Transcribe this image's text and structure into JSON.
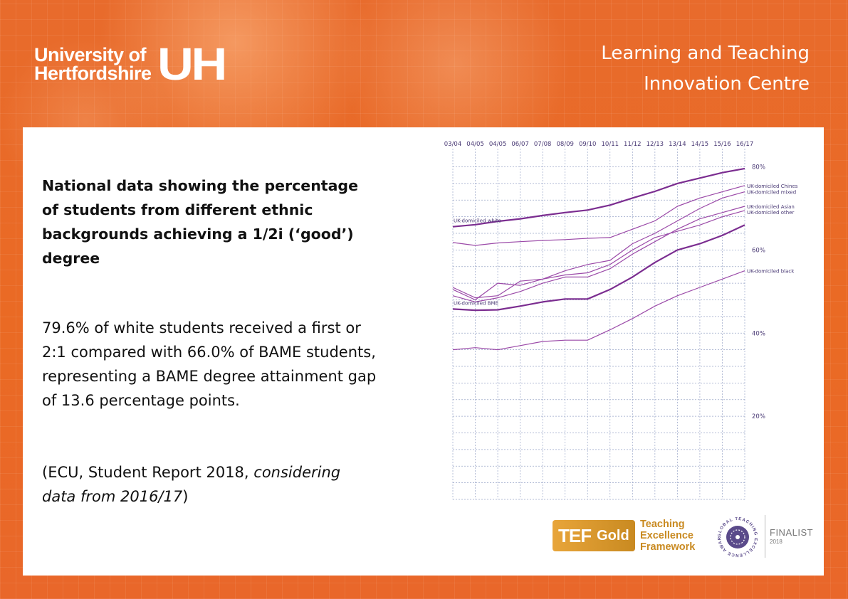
{
  "header": {
    "university_line1": "University of",
    "university_line2": "Hertfordshire",
    "university_mark": "UH",
    "centre_line1": "Learning and Teaching",
    "centre_line2": "Innovation Centre"
  },
  "text": {
    "heading": "National data showing the percentage of students from different ethnic backgrounds achieving a 1/2i (‘good’) degree",
    "paragraph": "79.6% of white students received a first or 2:1 compared with 66.0% of BAME students, representing a BAME degree attainment gap of 13.6 percentage points.",
    "citation_prefix": "(ECU, Student Report 2018, ",
    "citation_italic": "considering data from 2016/17",
    "citation_suffix": ")"
  },
  "chart_data": {
    "type": "line",
    "title": "",
    "xlabel": "",
    "ylabel": "",
    "x": [
      "03/04",
      "04/05",
      "04/05",
      "06/07",
      "07/08",
      "08/09",
      "09/10",
      "10/11",
      "11/12",
      "12/13",
      "13/14",
      "14/15",
      "15/16",
      "16/17"
    ],
    "ylim": [
      0,
      83
    ],
    "yticks": [
      20,
      40,
      60,
      80
    ],
    "ytick_labels": [
      "20%",
      "40%",
      "60%",
      "80%"
    ],
    "grid": true,
    "series": [
      {
        "name": "UK-domiciled white",
        "label_position": "left-start",
        "bold": true,
        "values": [
          65.6,
          66.1,
          66.9,
          67.5,
          68.3,
          69.0,
          69.6,
          70.8,
          72.5,
          74.1,
          76.0,
          77.3,
          78.6,
          79.6
        ]
      },
      {
        "name": "UK-domiciled Chinese",
        "label_position": "right-end",
        "bold": false,
        "values": [
          61.8,
          61.1,
          61.7,
          62.0,
          62.3,
          62.5,
          62.8,
          63.0,
          65.0,
          67.0,
          70.5,
          72.5,
          74.0,
          75.5
        ]
      },
      {
        "name": "UK-domiciled mixed",
        "label_position": "right-end",
        "bold": false,
        "values": [
          50.5,
          48.0,
          52.0,
          51.5,
          53.0,
          55.0,
          56.5,
          57.5,
          61.5,
          64.0,
          67.0,
          70.0,
          72.5,
          74.0
        ]
      },
      {
        "name": "UK-domiciled Asian",
        "label_position": "right-end",
        "bold": false,
        "values": [
          49.0,
          47.5,
          48.5,
          50.0,
          52.0,
          53.5,
          53.5,
          55.5,
          59.0,
          62.0,
          65.0,
          67.5,
          69.0,
          70.5
        ]
      },
      {
        "name": "UK-domiciled other",
        "label_position": "right-end",
        "bold": false,
        "values": [
          51.0,
          48.5,
          49.0,
          52.5,
          53.0,
          54.0,
          54.5,
          56.5,
          60.0,
          63.0,
          64.5,
          66.0,
          68.0,
          69.5
        ]
      },
      {
        "name": "UK-domiciled BME",
        "label_position": "left-start",
        "bold": true,
        "values": [
          45.8,
          45.5,
          45.6,
          46.5,
          47.5,
          48.2,
          48.2,
          50.5,
          53.5,
          57.0,
          60.0,
          61.5,
          63.5,
          66.0
        ]
      },
      {
        "name": "UK-domiciled black",
        "label_position": "right-end",
        "bold": false,
        "values": [
          36.0,
          36.5,
          36.0,
          37.0,
          38.0,
          38.3,
          38.3,
          40.8,
          43.5,
          46.5,
          49.0,
          51.0,
          53.0,
          55.0
        ]
      }
    ]
  },
  "badges": {
    "tef_abbr": "TEF",
    "tef_level": "Gold",
    "tef_line1": "Teaching",
    "tef_line2": "Excellence",
    "tef_line3": "Framework",
    "gte_ring_text": "GLOBAL TEACHING EXCELLENCE AWARD",
    "gte_status": "FINALIST",
    "gte_year": "2018"
  },
  "colors": {
    "background": "#e9672a",
    "line_dark": "#7b2d90",
    "line_light": "#9b4aa8",
    "grid": "#9aa6c8",
    "tef_gold": "#c98a21"
  }
}
